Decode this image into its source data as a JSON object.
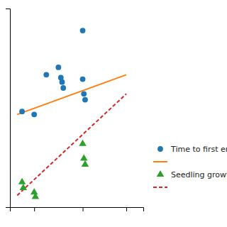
{
  "chart_data": {
    "type": "scatter",
    "series": [
      {
        "name": "Time to first em",
        "type": "scatter",
        "marker": "circle",
        "x": [
          1.0,
          1.5,
          3.0,
          2.0,
          2.1,
          2.15,
          2.2,
          3.0,
          3.05,
          3.1,
          0.5
        ],
        "values": [
          5.8,
          8.5,
          11.5,
          9.0,
          8.3,
          8.0,
          7.6,
          8.2,
          7.2,
          6.8,
          6.0
        ]
      },
      {
        "type": "line",
        "line_style": "solid",
        "x": [
          0.3,
          4.8
        ],
        "values": [
          5.8,
          8.5
        ]
      },
      {
        "name": "Seedling growtl",
        "type": "scatter",
        "marker": "triangle",
        "x": [
          0.5,
          0.55,
          1.0,
          1.05,
          3.0,
          3.05,
          3.1
        ],
        "values": [
          1.2,
          0.8,
          0.5,
          0.2,
          3.8,
          2.8,
          2.4
        ]
      },
      {
        "type": "line",
        "line_style": "dashed",
        "x": [
          0.3,
          4.8
        ],
        "values": [
          0.3,
          7.2
        ]
      }
    ],
    "xlim": [
      0.0,
      5.5
    ],
    "xticks": [
      1.0,
      3.0,
      4.8
    ],
    "ylim": [
      -0.5,
      13.0
    ],
    "yticks": [],
    "tick_labels": false,
    "legend": "right"
  }
}
